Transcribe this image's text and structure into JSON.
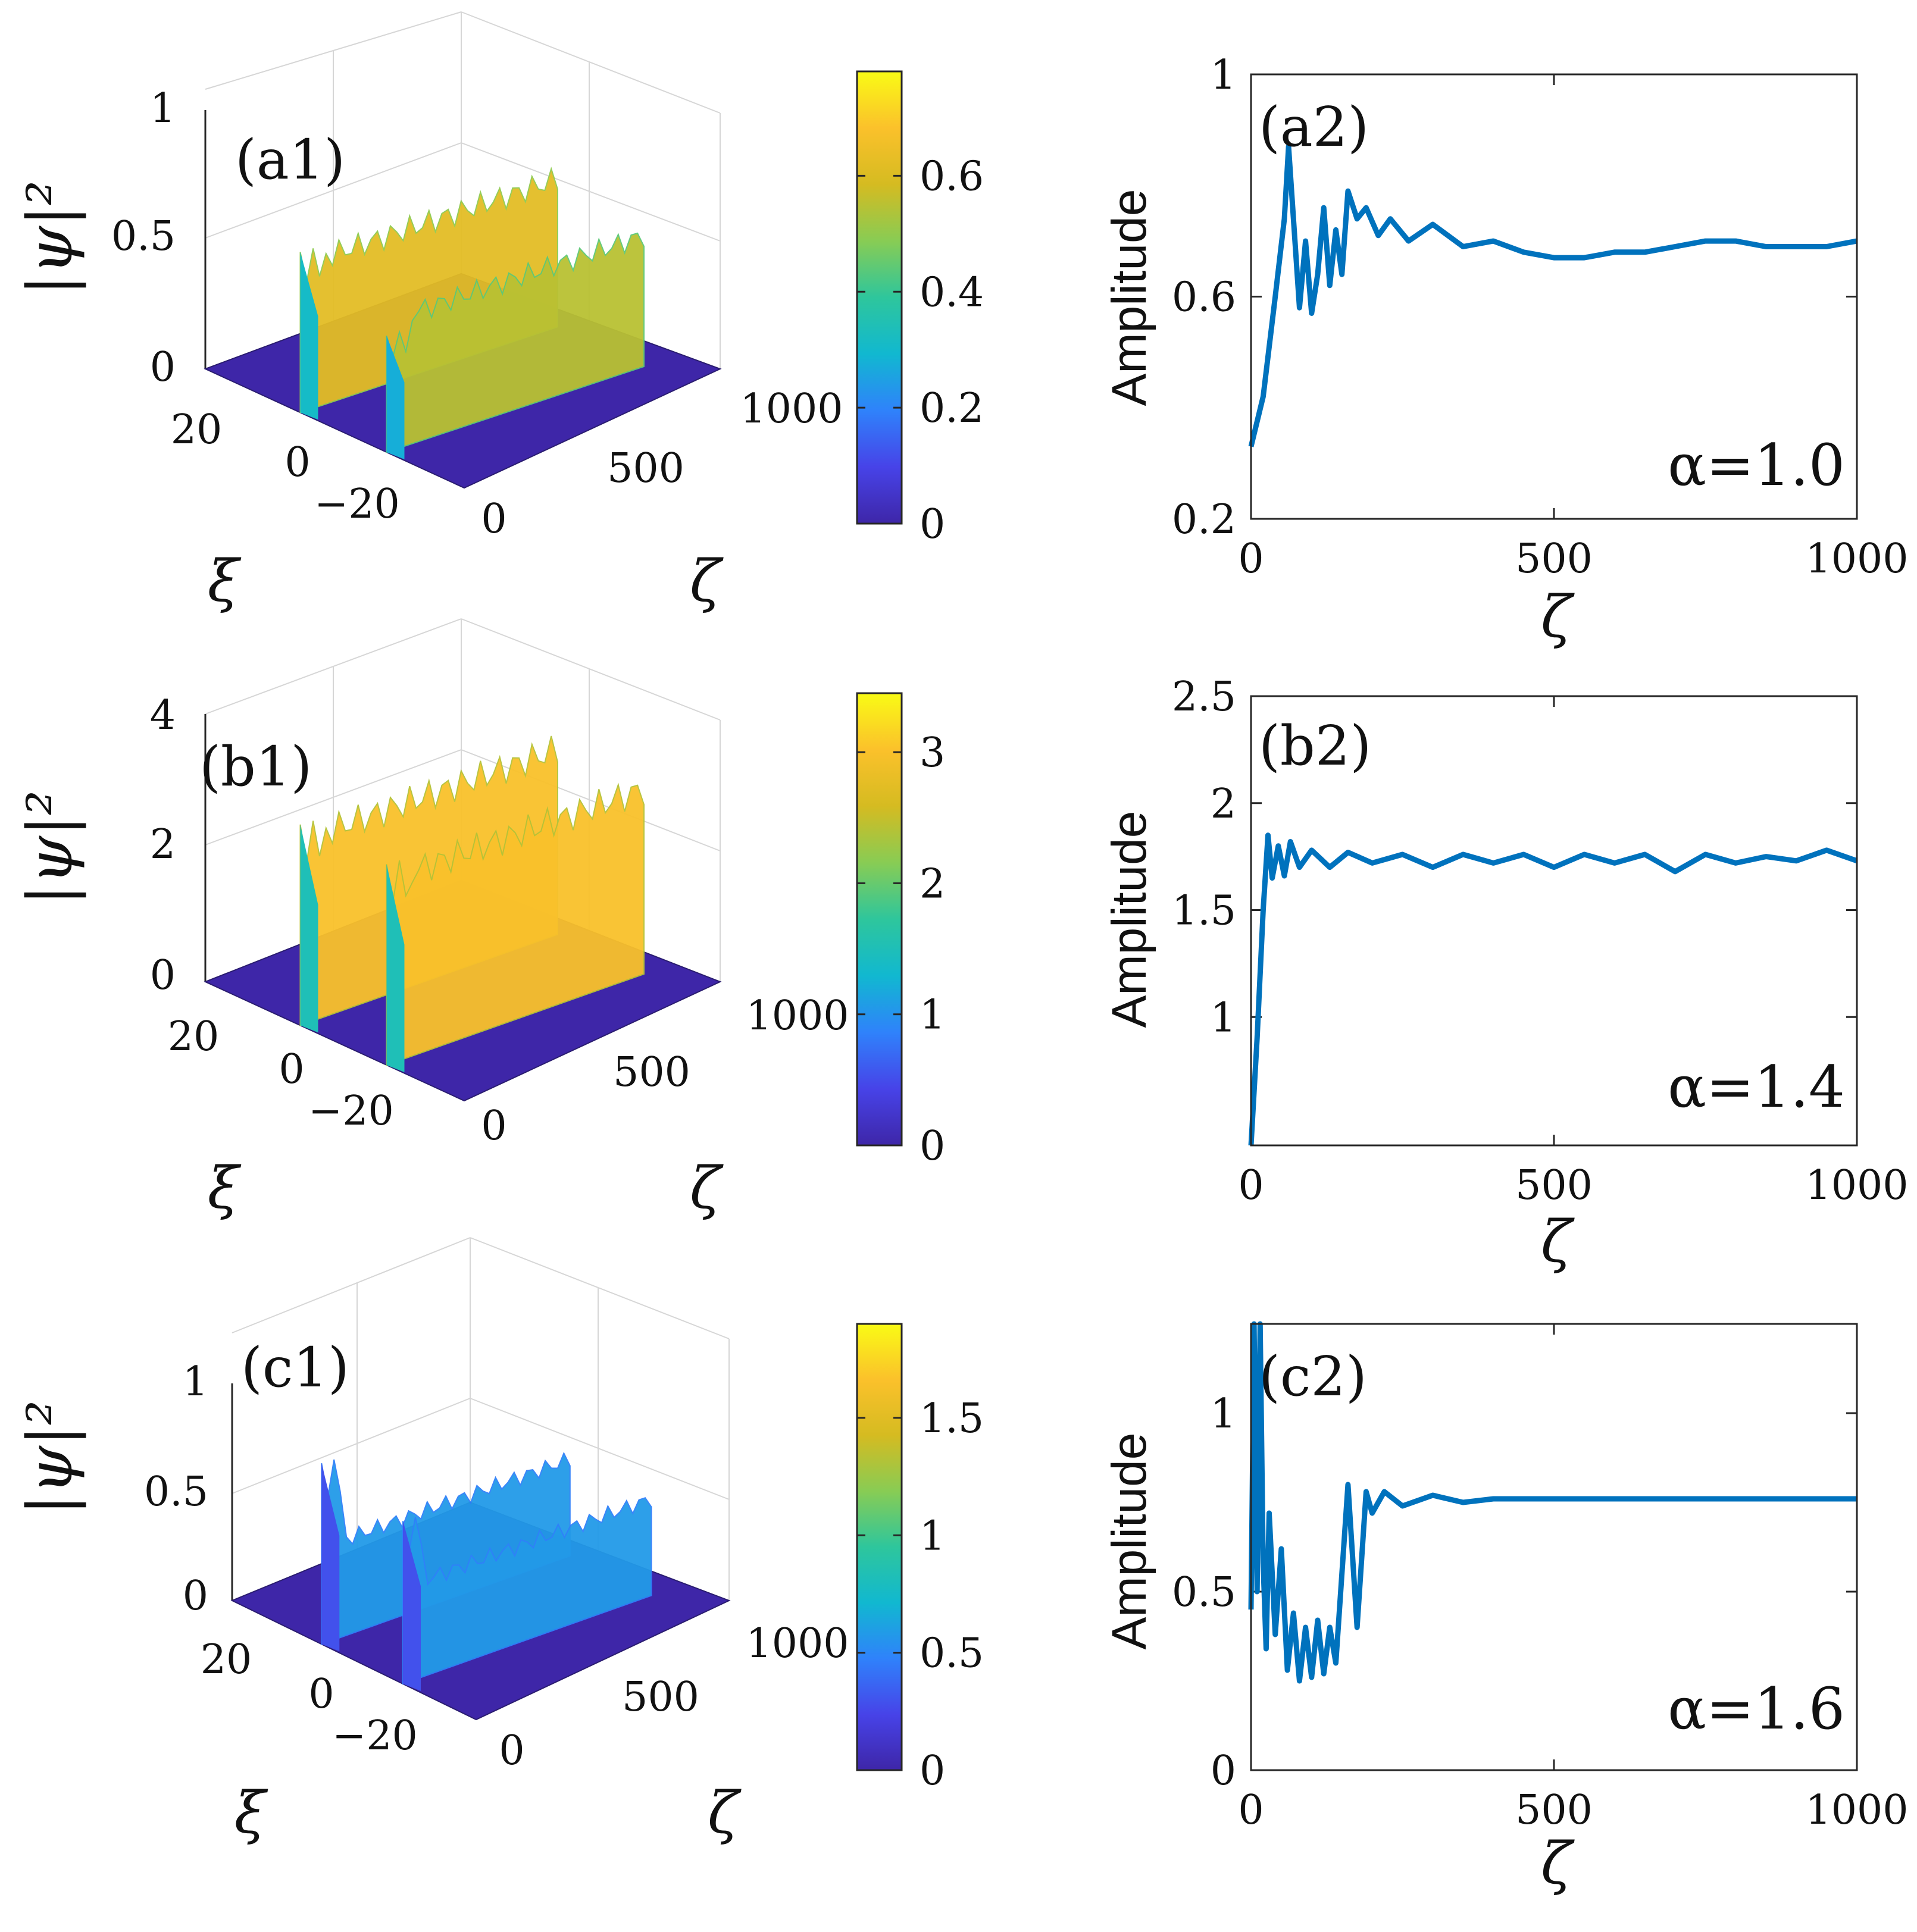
{
  "figure": {
    "colormap": [
      "#3e26a8",
      "#4743e8",
      "#2f82fb",
      "#11b8d0",
      "#2ec69c",
      "#88cc54",
      "#d5bb21",
      "#fbc12b",
      "#f9fb15"
    ]
  },
  "chart_data": [
    {
      "id": "a1",
      "type": "surface3d",
      "panel_label": "(a1)",
      "zlabel": "|ψ|²",
      "xlabel": "ξ",
      "ylabel": "ζ",
      "zlim": [
        0,
        1
      ],
      "zticks": [
        "0",
        "0.5",
        "1"
      ],
      "xticks": [
        "20",
        "0",
        "−20"
      ],
      "yticks": [
        "0",
        "500",
        "1000"
      ],
      "colorbar": {
        "min": 0,
        "max": 0.78,
        "ticks": [
          "0",
          "0.2",
          "0.4",
          "0.6"
        ],
        "tick_values": [
          0,
          0.2,
          0.4,
          0.6
        ]
      },
      "ridges": [
        {
          "xi": 8,
          "peak": 0.62,
          "plateau": 0.62
        },
        {
          "xi": -12,
          "peak": 0.45,
          "plateau": 0.55
        }
      ]
    },
    {
      "id": "a2",
      "type": "line",
      "panel_label": "(a2)",
      "xlabel": "ζ",
      "ylabel": "Amplitude",
      "annotation": "α=1.0",
      "xlim": [
        0,
        1000
      ],
      "ylim": [
        0.2,
        1.0
      ],
      "xticks": [
        "0",
        "500",
        "1000"
      ],
      "yticks": [
        "0.2",
        "0.6",
        "1"
      ],
      "xtick_values": [
        0,
        500,
        1000
      ],
      "ytick_values": [
        0.2,
        0.6,
        1.0
      ],
      "x": [
        0,
        20,
        40,
        55,
        62,
        70,
        80,
        90,
        100,
        110,
        120,
        130,
        140,
        150,
        160,
        175,
        190,
        210,
        230,
        260,
        300,
        350,
        400,
        450,
        500,
        550,
        600,
        650,
        700,
        750,
        800,
        850,
        900,
        950,
        1000
      ],
      "y": [
        0.33,
        0.42,
        0.6,
        0.74,
        0.87,
        0.74,
        0.58,
        0.7,
        0.57,
        0.64,
        0.76,
        0.62,
        0.72,
        0.64,
        0.79,
        0.74,
        0.76,
        0.71,
        0.74,
        0.7,
        0.73,
        0.69,
        0.7,
        0.68,
        0.67,
        0.67,
        0.68,
        0.68,
        0.69,
        0.7,
        0.7,
        0.69,
        0.69,
        0.69,
        0.7
      ]
    },
    {
      "id": "b1",
      "type": "surface3d",
      "panel_label": "(b1)",
      "zlabel": "|ψ|²",
      "xlabel": "ξ",
      "ylabel": "ζ",
      "zlim": [
        0,
        4
      ],
      "zticks": [
        "0",
        "2",
        "4"
      ],
      "xticks": [
        "20",
        "0",
        "−20"
      ],
      "yticks": [
        "0",
        "500",
        "1000"
      ],
      "colorbar": {
        "min": 0,
        "max": 3.45,
        "ticks": [
          "0",
          "1",
          "2",
          "3"
        ],
        "tick_values": [
          0,
          1,
          2,
          3
        ]
      },
      "ridges": [
        {
          "xi": 8,
          "peak": 3.0,
          "plateau": 3.0
        },
        {
          "xi": -12,
          "peak": 3.0,
          "plateau": 3.0
        }
      ]
    },
    {
      "id": "b2",
      "type": "line",
      "panel_label": "(b2)",
      "xlabel": "ζ",
      "ylabel": "Amplitude",
      "annotation": "α=1.4",
      "xlim": [
        0,
        1000
      ],
      "ylim": [
        0.4,
        2.5
      ],
      "xticks": [
        "0",
        "500",
        "1000"
      ],
      "yticks": [
        "1",
        "1.5",
        "2",
        "2.5"
      ],
      "xtick_values": [
        0,
        500,
        1000
      ],
      "ytick_values": [
        1.0,
        1.5,
        2.0,
        2.5
      ],
      "x": [
        0,
        10,
        20,
        28,
        35,
        45,
        55,
        65,
        80,
        100,
        130,
        160,
        200,
        250,
        300,
        350,
        400,
        450,
        500,
        550,
        600,
        650,
        700,
        750,
        800,
        850,
        900,
        950,
        1000
      ],
      "y": [
        0.4,
        0.9,
        1.5,
        1.85,
        1.65,
        1.8,
        1.66,
        1.82,
        1.7,
        1.78,
        1.7,
        1.77,
        1.72,
        1.76,
        1.7,
        1.76,
        1.72,
        1.76,
        1.7,
        1.76,
        1.72,
        1.76,
        1.68,
        1.76,
        1.72,
        1.75,
        1.73,
        1.78,
        1.73
      ]
    },
    {
      "id": "c1",
      "type": "surface3d",
      "panel_label": "(c1)",
      "zlabel": "|ψ|²",
      "xlabel": "ξ",
      "ylabel": "ζ",
      "zlim": [
        0,
        1.2
      ],
      "zticks": [
        "0",
        "0.5",
        "1"
      ],
      "xticks": [
        "20",
        "0",
        "−20"
      ],
      "yticks": [
        "0",
        "500",
        "1000"
      ],
      "colorbar": {
        "min": 0,
        "max": 1.9,
        "ticks": [
          "0",
          "0.5",
          "1",
          "1.5"
        ],
        "tick_values": [
          0,
          0.5,
          1,
          1.5
        ]
      },
      "ridges": [
        {
          "xi": 8,
          "peak": 1.0,
          "plateau": 0.58
        },
        {
          "xi": -12,
          "peak": 0.9,
          "plateau": 0.58
        }
      ]
    },
    {
      "id": "c2",
      "type": "line",
      "panel_label": "(c2)",
      "xlabel": "ζ",
      "ylabel": "Amplitude",
      "annotation": "α=1.6",
      "xlim": [
        0,
        1000
      ],
      "ylim": [
        0,
        1.25
      ],
      "xticks": [
        "0",
        "500",
        "1000"
      ],
      "yticks": [
        "0",
        "0.5",
        "1"
      ],
      "xtick_values": [
        0,
        500,
        1000
      ],
      "ytick_values": [
        0,
        0.5,
        1.0
      ],
      "x": [
        0,
        5,
        10,
        15,
        20,
        25,
        30,
        40,
        50,
        60,
        70,
        80,
        90,
        100,
        110,
        120,
        130,
        140,
        160,
        175,
        190,
        200,
        220,
        250,
        300,
        350,
        400,
        500,
        600,
        700,
        800,
        900,
        1000
      ],
      "y": [
        0.45,
        1.25,
        0.5,
        1.25,
        0.58,
        0.34,
        0.72,
        0.38,
        0.62,
        0.28,
        0.44,
        0.25,
        0.4,
        0.26,
        0.42,
        0.27,
        0.4,
        0.3,
        0.8,
        0.4,
        0.78,
        0.72,
        0.78,
        0.74,
        0.77,
        0.75,
        0.76,
        0.76,
        0.76,
        0.76,
        0.76,
        0.76,
        0.76
      ]
    }
  ]
}
